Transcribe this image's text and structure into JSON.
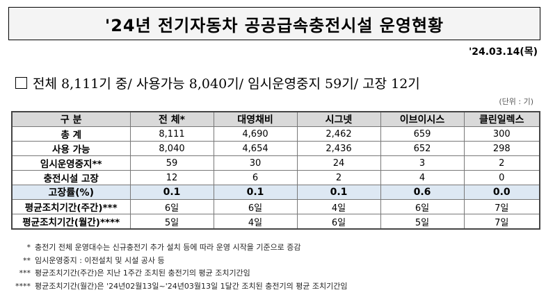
{
  "title": "'24년 전기자동차 공공급속충전시설 운영현황",
  "date": "'24.03.14(목)",
  "summary": "전체 8,111기 중/ 사용가능 8,040기/ 임시운영중지 59기/ 고장 12기",
  "unit": "(단위 : 기)",
  "table": {
    "headers": [
      "구 분",
      "전 체*",
      "대영채비",
      "시그넷",
      "이브이시스",
      "클린일렉스"
    ],
    "rows": [
      {
        "label": "총 계",
        "values": [
          "8,111",
          "4,690",
          "2,462",
          "659",
          "300"
        ]
      },
      {
        "label": "사용 가능",
        "values": [
          "8,040",
          "4,654",
          "2,436",
          "652",
          "298"
        ]
      },
      {
        "label": "임시운영중지**",
        "values": [
          "59",
          "30",
          "24",
          "3",
          "2"
        ]
      },
      {
        "label": "충전시설 고장",
        "values": [
          "12",
          "6",
          "2",
          "4",
          "0"
        ]
      },
      {
        "label": "고장률(%)",
        "values": [
          "0.1",
          "0.1",
          "0.1",
          "0.6",
          "0.0"
        ]
      },
      {
        "label": "평균조치기간(주간)***",
        "values": [
          "6일",
          "6일",
          "4일",
          "6일",
          "7일"
        ]
      },
      {
        "label": "평균조치기간(월간)****",
        "values": [
          "5일",
          "4일",
          "6일",
          "5일",
          "7일"
        ]
      }
    ]
  },
  "notes": [
    {
      "mark": "*",
      "text": "충전기 전체 운영대수는 신규충전기 추가 설치 등에 따라 운영 시작을 기준으로 증감"
    },
    {
      "mark": "**",
      "text": "임시운영중지 : 이전설치 및 시설 공사 등"
    },
    {
      "mark": "***",
      "text": "평균조치기간(주간)은 지난 1주간 조치된 충전기의 평균 조치기간임"
    },
    {
      "mark": "****",
      "text": "평균조치기간(월간)은 '24년02월13일~'24년03월13일 1달간 조치된 충전기의 평균 조치기간임"
    }
  ]
}
